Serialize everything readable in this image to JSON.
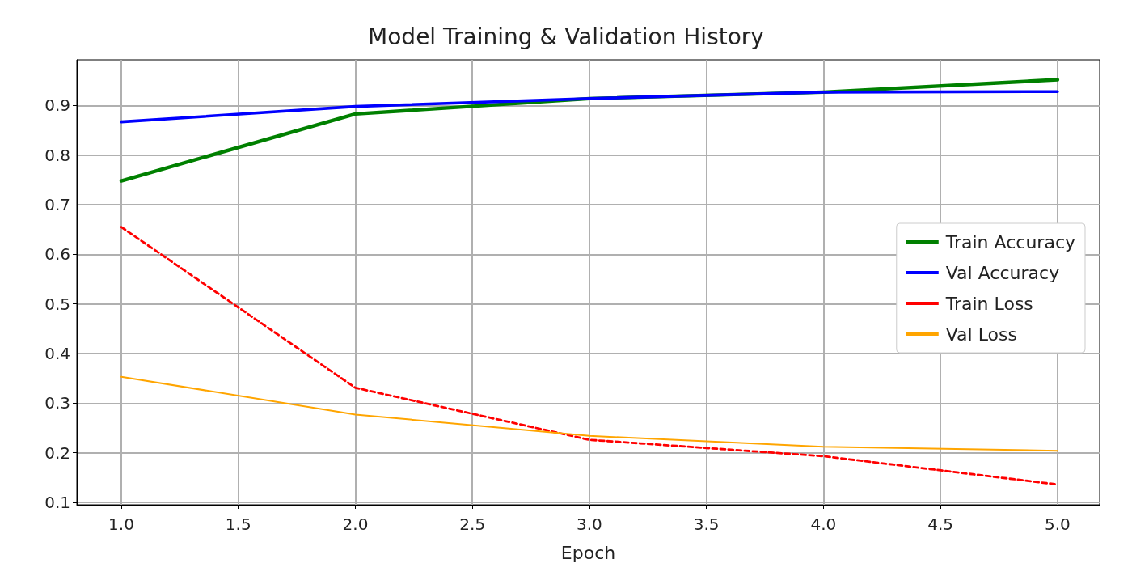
{
  "chart_data": {
    "type": "line",
    "title": "Model Training & Validation History",
    "xlabel": "Epoch",
    "x": [
      1,
      2,
      3,
      4,
      5
    ],
    "series": [
      {
        "name": "Train Accuracy",
        "color": "#008000",
        "values": [
          0.748,
          0.883,
          0.914,
          0.927,
          0.952
        ]
      },
      {
        "name": "Val Accuracy",
        "color": "#0000ff",
        "values": [
          0.867,
          0.898,
          0.914,
          0.927,
          0.928
        ]
      },
      {
        "name": "Train Loss",
        "color": "#ff0000",
        "values": [
          0.655,
          0.331,
          0.226,
          0.193,
          0.136
        ],
        "line_style": "dashed"
      },
      {
        "name": "Val Loss",
        "color": "#ffa500",
        "values": [
          0.353,
          0.277,
          0.234,
          0.212,
          0.204
        ]
      }
    ],
    "xlim": [
      0.81,
      5.18
    ],
    "ylim": [
      0.095,
      0.992
    ],
    "xticks": [
      {
        "value": 1,
        "label": "1.0"
      },
      {
        "value": 1.5,
        "label": "1.5"
      },
      {
        "value": 2,
        "label": "2.0"
      },
      {
        "value": 2.5,
        "label": "2.5"
      },
      {
        "value": 3,
        "label": "3.0"
      },
      {
        "value": 3.5,
        "label": "3.5"
      },
      {
        "value": 4,
        "label": "4.0"
      },
      {
        "value": 4.5,
        "label": "4.5"
      },
      {
        "value": 5,
        "label": "5.0"
      }
    ],
    "yticks": [
      0.1,
      0.2,
      0.3,
      0.4,
      0.5,
      0.6,
      0.7,
      0.8,
      0.9
    ],
    "grid": true,
    "legend": "right",
    "marker": "none",
    "line_style": "solid"
  }
}
